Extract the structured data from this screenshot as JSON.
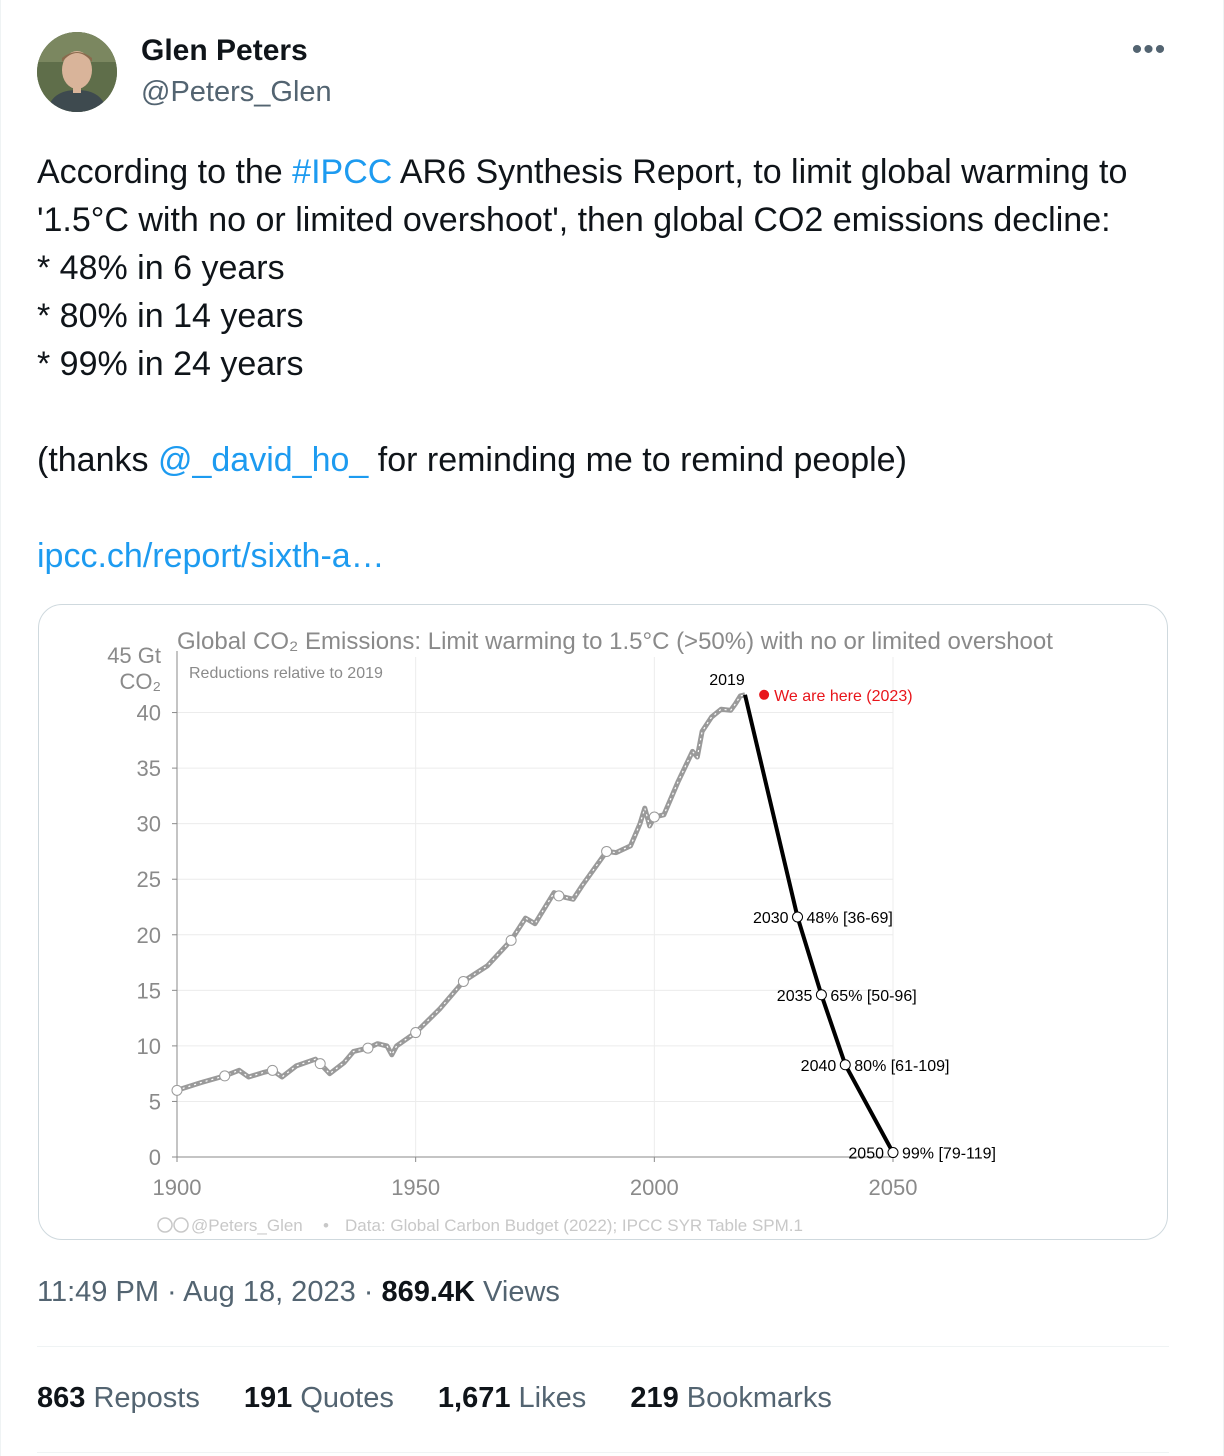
{
  "author": {
    "name": "Glen Peters",
    "handle": "@Peters_Glen"
  },
  "tweet": {
    "line1_pre": "According to the ",
    "line1_tag": "#IPCC",
    "line1_post": " AR6 Synthesis Report, to limit global warming to",
    "line2": "'1.5°C with no or limited overshoot', then global CO2 emissions decline:",
    "bullet1": "* 48% in 6 years",
    "bullet2": "* 80% in 14 years",
    "bullet3": "* 99% in 24 years",
    "thanks_pre": "(thanks ",
    "thanks_mention": "@_david_ho_",
    "thanks_post": " for reminding me to remind people)",
    "link": "ipcc.ch/report/sixth-a…"
  },
  "meta": {
    "time": "11:49 PM",
    "sep1": " · ",
    "date": "Aug 18, 2023",
    "sep2": " · ",
    "views_count": "869.4K",
    "views_label": " Views"
  },
  "stats": [
    {
      "count": "863",
      "label": " Reposts"
    },
    {
      "count": "191",
      "label": " Quotes"
    },
    {
      "count": "1,671",
      "label": " Likes"
    },
    {
      "count": "219",
      "label": " Bookmarks"
    }
  ],
  "chart_data": {
    "type": "line",
    "title": "Global CO₂ Emissions: Limit warming to 1.5°C (>50%) with no or limited overshoot",
    "subtitle": "Reductions relative to 2019",
    "ylabel_line1": "45 Gt",
    "ylabel_line2": "CO₂",
    "xlim": [
      1900,
      2050
    ],
    "ylim": [
      0,
      45
    ],
    "xticks": [
      1900,
      1950,
      2000,
      2050
    ],
    "yticks": [
      0,
      5,
      10,
      15,
      20,
      25,
      30,
      35,
      40
    ],
    "grid": true,
    "historical": {
      "x": [
        1900,
        1905,
        1910,
        1913,
        1915,
        1918,
        1920,
        1922,
        1925,
        1929,
        1930,
        1932,
        1935,
        1937,
        1940,
        1942,
        1944,
        1945,
        1946,
        1950,
        1955,
        1960,
        1965,
        1970,
        1973,
        1975,
        1979,
        1980,
        1983,
        1985,
        1990,
        1992,
        1995,
        1997,
        1998,
        1999,
        2000,
        2002,
        2005,
        2008,
        2009,
        2010,
        2012,
        2014,
        2016,
        2017,
        2018,
        2019
      ],
      "y": [
        6.0,
        6.7,
        7.3,
        7.8,
        7.2,
        7.6,
        7.8,
        7.2,
        8.2,
        8.8,
        8.4,
        7.5,
        8.5,
        9.5,
        9.8,
        10.2,
        10.0,
        9.2,
        10.0,
        11.2,
        13.3,
        15.8,
        17.2,
        19.5,
        21.5,
        21.0,
        23.8,
        23.5,
        23.2,
        24.5,
        27.5,
        27.4,
        28.0,
        30.0,
        31.4,
        29.8,
        30.6,
        30.8,
        33.8,
        36.5,
        36.0,
        38.3,
        39.6,
        40.3,
        40.2,
        40.8,
        41.5,
        41.6
      ]
    },
    "pathway": {
      "x": [
        2019,
        2030,
        2035,
        2040,
        2050
      ],
      "y": [
        41.6,
        21.6,
        14.6,
        8.3,
        0.4
      ]
    },
    "point_labels": [
      {
        "year": "2019",
        "label": ""
      },
      {
        "year": "2030",
        "label": "48% [36-69]"
      },
      {
        "year": "2035",
        "label": "65% [50-96]"
      },
      {
        "year": "2040",
        "label": "80% [61-109]"
      },
      {
        "year": "2050",
        "label": "99% [79-119]"
      }
    ],
    "marker": {
      "x": 2023,
      "y": 41.6,
      "label": "We are here (2023)",
      "color": "#e8151b"
    },
    "footer_credit": "@Peters_Glen",
    "footer_sep": "•",
    "footer_source": "Data: Global Carbon Budget (2022); IPCC SYR Table SPM.1",
    "colors": {
      "historical": "#9a9a9a",
      "pathway": "#000000",
      "axis": "#8a8a8a"
    }
  }
}
